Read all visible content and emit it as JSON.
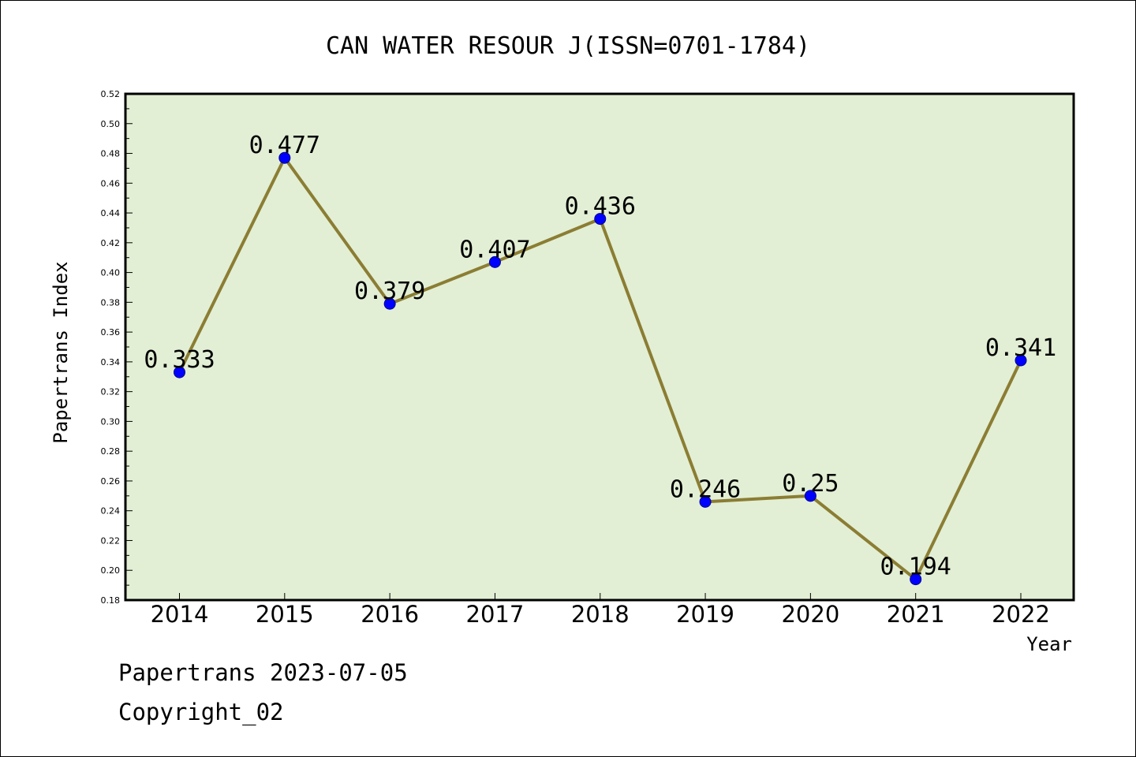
{
  "chart_data": {
    "type": "line",
    "title": "CAN WATER RESOUR J(ISSN=0701-1784)",
    "xlabel": "Year",
    "ylabel": "Papertrans Index",
    "categories": [
      "2014",
      "2015",
      "2016",
      "2017",
      "2018",
      "2019",
      "2020",
      "2021",
      "2022"
    ],
    "values": [
      0.333,
      0.477,
      0.379,
      0.407,
      0.436,
      0.246,
      0.25,
      0.194,
      0.341
    ],
    "data_labels": [
      "0.333",
      "0.477",
      "0.379",
      "0.407",
      "0.436",
      "0.246",
      "0.25",
      "0.194",
      "0.341"
    ],
    "ylim": [
      0.18,
      0.52
    ],
    "y_ticks": [
      "0.18",
      "0.20",
      "0.22",
      "0.24",
      "0.26",
      "0.28",
      "0.30",
      "0.32",
      "0.34",
      "0.36",
      "0.38",
      "0.40",
      "0.42",
      "0.44",
      "0.46",
      "0.48",
      "0.50",
      "0.52"
    ],
    "grid": false,
    "legend": "none",
    "colors": {
      "plot_background": "#e2efd5",
      "line": "#8b7d33",
      "marker": "#0000ff"
    }
  },
  "footer": {
    "line1": "Papertrans 2023-07-05",
    "line2": "Copyright_02"
  }
}
